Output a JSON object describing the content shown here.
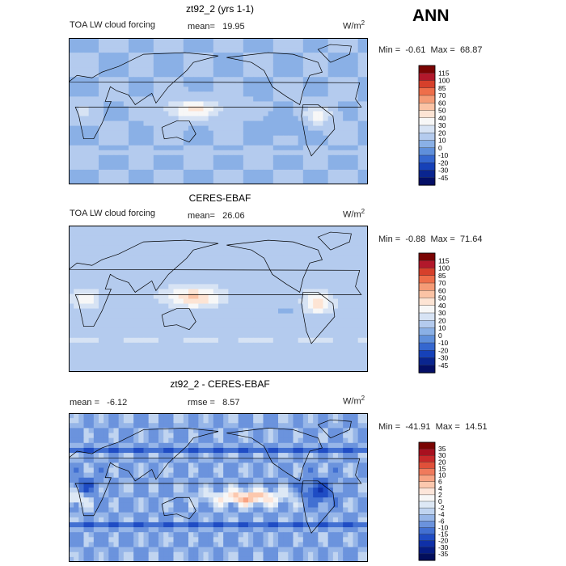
{
  "season_label": "ANN",
  "chart_data": [
    {
      "type": "heatmap",
      "title": "zt92_2 (yrs 1-1)",
      "left_label": "TOA LW cloud forcing",
      "mean_label": "mean=",
      "mean_value": "19.95",
      "units_base": "W/m",
      "units_exp": "2",
      "min_label": "Min =",
      "min_value": "-0.61",
      "max_label": "Max =",
      "max_value": "68.87",
      "legend_levels": [
        "115",
        "100",
        "85",
        "70",
        "60",
        "50",
        "40",
        "30",
        "20",
        "10",
        "0",
        "-10",
        "-20",
        "-30",
        "-45"
      ],
      "palette": [
        "#7a0403",
        "#b2182b",
        "#d6402b",
        "#ee6e4a",
        "#f59b76",
        "#fbc3a5",
        "#fde4d4",
        "#f7f7f7",
        "#d7e3f4",
        "#b4cbee",
        "#8ab0e6",
        "#5f8fdb",
        "#3567cf",
        "#1641b8",
        "#0a258f",
        "#040f66"
      ],
      "field": "model"
    },
    {
      "type": "heatmap",
      "title": "CERES-EBAF",
      "left_label": "TOA LW cloud forcing",
      "mean_label": "mean=",
      "mean_value": "26.06",
      "units_base": "W/m",
      "units_exp": "2",
      "min_label": "Min =",
      "min_value": "-0.88",
      "max_label": "Max =",
      "max_value": "71.64",
      "legend_levels": [
        "115",
        "100",
        "85",
        "70",
        "60",
        "50",
        "40",
        "30",
        "20",
        "10",
        "0",
        "-10",
        "-20",
        "-30",
        "-45"
      ],
      "palette": [
        "#7a0403",
        "#b2182b",
        "#d6402b",
        "#ee6e4a",
        "#f59b76",
        "#fbc3a5",
        "#fde4d4",
        "#f7f7f7",
        "#d7e3f4",
        "#b4cbee",
        "#8ab0e6",
        "#5f8fdb",
        "#3567cf",
        "#1641b8",
        "#0a258f",
        "#040f66"
      ],
      "field": "obs"
    },
    {
      "type": "heatmap",
      "title": "zt92_2 - CERES-EBAF",
      "left_label": "mean =",
      "mean_label": "",
      "mean_value": "-6.12",
      "rmse_label": "rmse =",
      "rmse_value": "8.57",
      "units_base": "W/m",
      "units_exp": "2",
      "min_label": "Min =",
      "min_value": "-41.91",
      "max_label": "Max =",
      "max_value": "14.51",
      "legend_levels": [
        "35",
        "30",
        "20",
        "15",
        "10",
        "6",
        "4",
        "2",
        "0",
        "-2",
        "-4",
        "-6",
        "-10",
        "-15",
        "-20",
        "-30",
        "-35"
      ],
      "palette": [
        "#7a0403",
        "#a8101f",
        "#c8292a",
        "#e0503a",
        "#f07a5c",
        "#f8a383",
        "#fcc8ae",
        "#fde6da",
        "#f7f7f7",
        "#dde8f5",
        "#c0d4f0",
        "#97b6e8",
        "#6b93dd",
        "#4270d2",
        "#1f4cc4",
        "#0f30a8",
        "#061c84",
        "#020e5c"
      ],
      "field": "diff"
    }
  ]
}
